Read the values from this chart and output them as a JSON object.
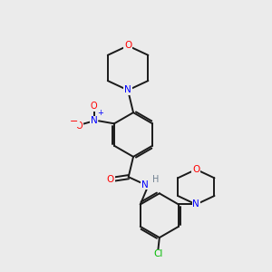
{
  "bg_color": "#ebebeb",
  "bond_color": "#1a1a1a",
  "N_color": "#0000ff",
  "O_color": "#ff0000",
  "Cl_color": "#00bb00",
  "H_color": "#708090",
  "lw": 1.4,
  "figsize": [
    3.0,
    3.0
  ],
  "dpi": 100,
  "xlim": [
    0,
    10
  ],
  "ylim": [
    0,
    10
  ]
}
